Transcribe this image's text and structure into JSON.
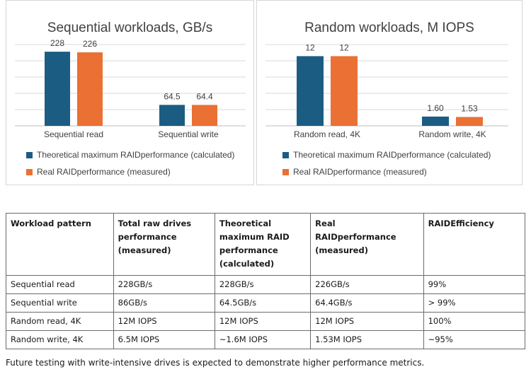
{
  "colors": {
    "theoretical": "#1b5d82",
    "real": "#ea7034",
    "grid": "#d9d9d9",
    "axis": "#bfbfbf"
  },
  "chart_data": [
    {
      "type": "bar",
      "title": "Sequential workloads, GB/s",
      "categories": [
        "Sequential read",
        "Sequential write"
      ],
      "series": [
        {
          "name": "Theoretical maximum RAIDperformance (calculated)",
          "values": [
            228,
            64.5
          ]
        },
        {
          "name": "Real RAIDperformance  (measured)",
          "values": [
            226,
            64.4
          ]
        }
      ],
      "value_labels": [
        [
          "228",
          "64.5"
        ],
        [
          "226",
          "64.4"
        ]
      ],
      "ylim": [
        0,
        250
      ],
      "grid": true,
      "legend": "bottom"
    },
    {
      "type": "bar",
      "title": "Random workloads, M IOPS",
      "categories": [
        "Random read, 4K",
        "Random write, 4K"
      ],
      "series": [
        {
          "name": "Theoretical maximum RAIDperformance (calculated)",
          "values": [
            12,
            1.6
          ]
        },
        {
          "name": "Real RAIDperformance  (measured)",
          "values": [
            12,
            1.53
          ]
        }
      ],
      "value_labels": [
        [
          "12",
          "1.60"
        ],
        [
          "12",
          "1.53"
        ]
      ],
      "ylim": [
        0,
        14
      ],
      "grid": true,
      "legend": "bottom"
    }
  ],
  "table": {
    "headers": [
      "Workload pattern",
      "Total raw drives performance (measured)",
      "Theoretical maximum RAID performance (calculated)",
      "Real RAIDperformance (measured)",
      "RAIDEfficiency"
    ],
    "rows": [
      [
        "Sequential read",
        "228GB/s",
        "228GB/s",
        "226GB/s",
        "99%"
      ],
      [
        "Sequential write",
        "86GB/s",
        "64.5GB/s",
        "64.4GB/s",
        "> 99%"
      ],
      [
        "Random read, 4K",
        "12M IOPS",
        "12M IOPS",
        "12M IOPS",
        "100%"
      ],
      [
        "Random write, 4K",
        "6.5M IOPS",
        "~1.6M IOPS",
        "1.53M IOPS",
        "~95%"
      ]
    ]
  },
  "footnote": "Future testing with write-intensive drives is expected to demonstrate higher performance metrics."
}
